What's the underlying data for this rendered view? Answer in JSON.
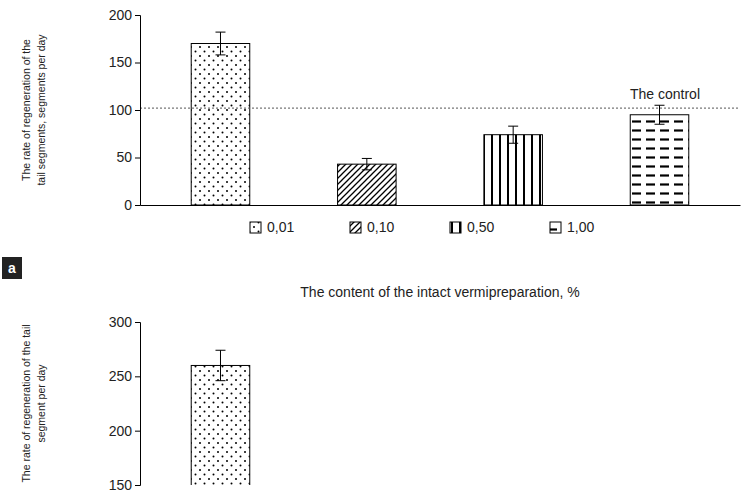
{
  "chart_data": [
    {
      "type": "bar",
      "y_label": [
        "The rate of regeneration of the",
        "tail segments, segments per day"
      ],
      "x_label": "The content of the intact vermipreparation, %",
      "categories": [
        "0,01",
        "0,10",
        "0,50",
        "1,00"
      ],
      "values": [
        170,
        43,
        74,
        95
      ],
      "errors": [
        12,
        6,
        9,
        10
      ],
      "color": "#000000",
      "ylim": [
        0,
        200
      ],
      "yticks": [
        0,
        50,
        100,
        150,
        200
      ],
      "grid": false,
      "legend": "bottom",
      "tick_labels": "y",
      "annotations": [
        {
          "text": "The control",
          "y": 102
        },
        {
          "text": "a"
        }
      ]
    },
    {
      "type": "bar",
      "y_label": [
        "The rate of regeneration of the tail",
        "segment per day"
      ],
      "categories": [
        null,
        null,
        null,
        null
      ],
      "values": [
        260,
        null,
        null,
        null
      ],
      "errors": [
        14,
        null,
        null,
        null
      ],
      "color": "#000000",
      "ylim": [
        150,
        300
      ],
      "yticks": [
        150,
        200,
        250,
        300
      ],
      "grid": false,
      "tick_labels": "y"
    }
  ]
}
